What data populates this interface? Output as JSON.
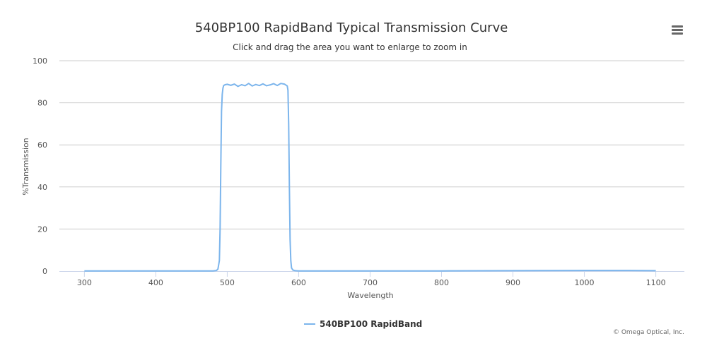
{
  "chart_data": {
    "type": "line",
    "title": "540BP100 RapidBand Typical Transmission Curve",
    "subtitle": "Click and drag the area you want to enlarge to zoom in",
    "xlabel": "Wavelength",
    "ylabel": "%Transmission",
    "xlim": [
      265,
      1140
    ],
    "ylim": [
      0,
      100
    ],
    "xticks": [
      300,
      400,
      500,
      600,
      700,
      800,
      900,
      1000,
      1100
    ],
    "yticks": [
      0,
      20,
      40,
      60,
      80,
      100
    ],
    "grid": true,
    "legend": "bottom-center",
    "series": [
      {
        "name": "540BP100 RapidBand",
        "color": "#7cb5ec",
        "x": [
          300,
          480,
          485,
          487,
          489,
          490,
          491,
          492,
          493,
          494,
          495,
          497,
          500,
          505,
          510,
          515,
          520,
          525,
          530,
          535,
          540,
          545,
          550,
          555,
          560,
          565,
          570,
          575,
          580,
          584,
          585,
          586,
          587,
          588,
          589,
          590,
          592,
          595,
          600,
          700,
          800,
          900,
          1000,
          1050,
          1100
        ],
        "y": [
          0.1,
          0.1,
          0.3,
          1,
          5,
          20,
          50,
          76,
          84,
          87,
          88.2,
          88.6,
          88.8,
          88.3,
          88.9,
          87.8,
          88.6,
          88.1,
          89.2,
          88.0,
          88.7,
          88.2,
          89.0,
          88.1,
          88.5,
          89.1,
          88.2,
          89.2,
          88.9,
          88.0,
          86,
          70,
          40,
          15,
          5,
          1.5,
          0.5,
          0.2,
          0.1,
          0.1,
          0.1,
          0.2,
          0.3,
          0.3,
          0.2
        ]
      }
    ]
  },
  "credits": "© Omega Optical, Inc.",
  "menu_icon": "hamburger-menu-icon"
}
